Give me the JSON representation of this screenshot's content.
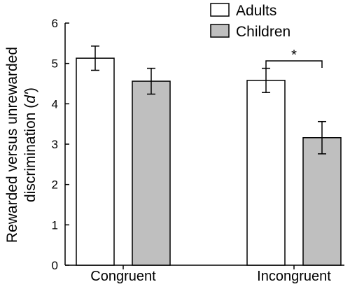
{
  "chart_data": {
    "type": "bar",
    "categories": [
      "Congruent",
      "Incongruent"
    ],
    "series": [
      {
        "name": "Adults",
        "values": [
          5.13,
          4.58
        ],
        "errors": [
          0.3,
          0.3
        ],
        "color": "#ffffff"
      },
      {
        "name": "Children",
        "values": [
          4.56,
          3.16
        ],
        "errors": [
          0.32,
          0.4
        ],
        "color": "#bfbfbf"
      }
    ],
    "ylabel_line1": "Rewarded versus unrewarded",
    "ylabel_line2_prefix": "discrimination (",
    "ylabel_line2_italic": "d'",
    "ylabel_line2_suffix": ")",
    "ylim": [
      0,
      6
    ],
    "yticks": [
      "0",
      "1",
      "2",
      "3",
      "4",
      "5",
      "6"
    ],
    "legend_position": "top-right",
    "significance": {
      "category_index": 1,
      "label": "*"
    },
    "grid": false
  }
}
